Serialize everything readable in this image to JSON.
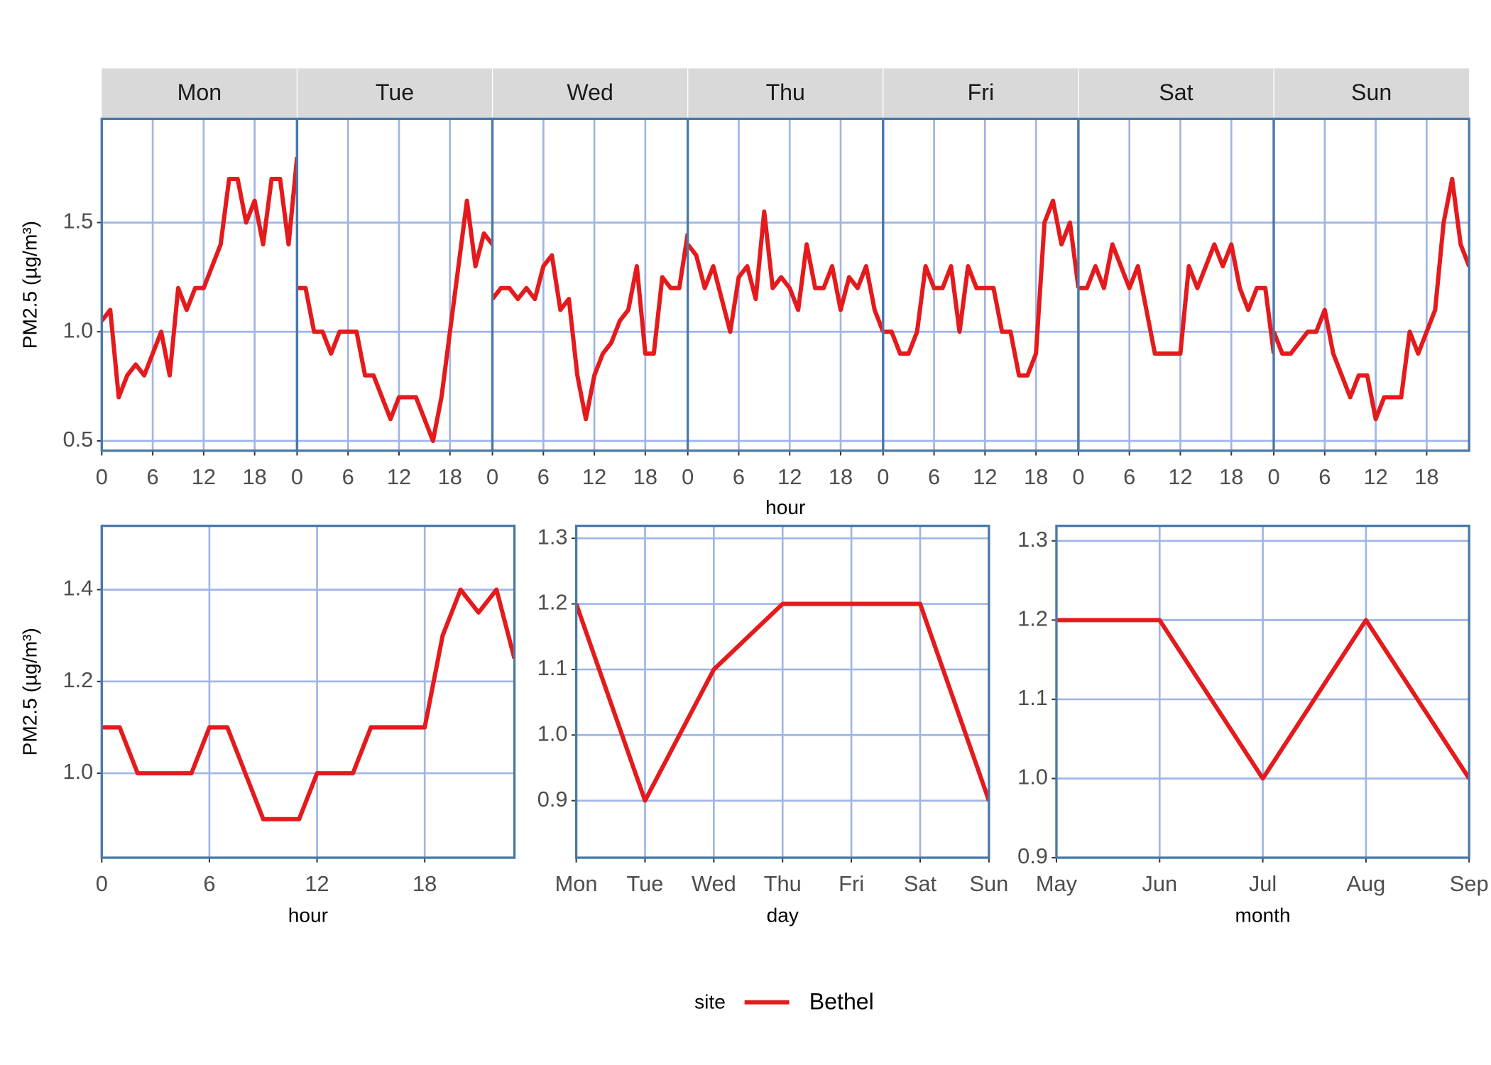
{
  "chart_data": [
    {
      "type": "line",
      "color": "#e41a1c",
      "y_label": "PM2.5 (µg/m³)",
      "x_label": "hour",
      "grid": true,
      "x": [
        0,
        1,
        2,
        3,
        4,
        5,
        6,
        7,
        8,
        9,
        10,
        11,
        12,
        13,
        14,
        15,
        16,
        17,
        18,
        19,
        20,
        21,
        22,
        23
      ],
      "xlim": [
        0,
        23
      ],
      "xticks": [
        0,
        6,
        12,
        18
      ],
      "ylim": [
        0.455,
        1.975
      ],
      "yticks": [
        0.5,
        {
          "value": 1,
          "label": "1.0"
        },
        1.5
      ],
      "facets": [
        {
          "label": "Mon",
          "values": [
            1.05,
            1.1,
            0.7,
            0.8,
            0.85,
            0.8,
            0.9,
            1.0,
            0.8,
            1.2,
            1.1,
            1.2,
            1.2,
            1.3,
            1.4,
            1.7,
            1.7,
            1.5,
            1.6,
            1.4,
            1.7,
            1.7,
            1.4,
            1.8
          ]
        },
        {
          "label": "Tue",
          "values": [
            1.2,
            1.2,
            1.0,
            1.0,
            0.9,
            1.0,
            1.0,
            1.0,
            0.8,
            0.8,
            0.7,
            0.6,
            0.7,
            0.7,
            0.7,
            0.6,
            0.5,
            0.7,
            1.0,
            1.3,
            1.6,
            1.3,
            1.45,
            1.4
          ]
        },
        {
          "label": "Wed",
          "values": [
            1.15,
            1.2,
            1.2,
            1.15,
            1.2,
            1.15,
            1.3,
            1.35,
            1.1,
            1.15,
            0.8,
            0.6,
            0.8,
            0.9,
            0.95,
            1.05,
            1.1,
            1.3,
            0.9,
            0.9,
            1.25,
            1.2,
            1.2,
            1.45
          ]
        },
        {
          "label": "Thu",
          "values": [
            1.4,
            1.35,
            1.2,
            1.3,
            1.15,
            1.0,
            1.25,
            1.3,
            1.15,
            1.55,
            1.2,
            1.25,
            1.2,
            1.1,
            1.4,
            1.2,
            1.2,
            1.3,
            1.1,
            1.25,
            1.2,
            1.3,
            1.1,
            1.0
          ]
        },
        {
          "label": "Fri",
          "values": [
            1.0,
            1.0,
            0.9,
            0.9,
            1.0,
            1.3,
            1.2,
            1.2,
            1.3,
            1.0,
            1.3,
            1.2,
            1.2,
            1.2,
            1.0,
            1.0,
            0.8,
            0.8,
            0.9,
            1.5,
            1.6,
            1.4,
            1.5,
            1.2
          ]
        },
        {
          "label": "Sat",
          "values": [
            1.2,
            1.2,
            1.3,
            1.2,
            1.4,
            1.3,
            1.2,
            1.3,
            1.1,
            0.9,
            0.9,
            0.9,
            0.9,
            1.3,
            1.2,
            1.3,
            1.4,
            1.3,
            1.4,
            1.2,
            1.1,
            1.2,
            1.2,
            0.9
          ]
        },
        {
          "label": "Sun",
          "values": [
            1.0,
            0.9,
            0.9,
            0.95,
            1.0,
            1.0,
            1.1,
            0.9,
            0.8,
            0.7,
            0.8,
            0.8,
            0.6,
            0.7,
            0.7,
            0.7,
            1.0,
            0.9,
            1.0,
            1.1,
            1.5,
            1.7,
            1.4,
            1.3
          ]
        }
      ]
    },
    {
      "type": "line",
      "y_label": "PM2.5 (µg/m³)",
      "x_label": "hour",
      "grid": true,
      "legend_title": "site",
      "x": [
        0,
        1,
        2,
        3,
        4,
        5,
        6,
        7,
        8,
        9,
        10,
        11,
        12,
        13,
        14,
        15,
        16,
        17,
        18,
        19,
        20,
        21,
        22,
        23
      ],
      "xlim": [
        0,
        23
      ],
      "xticks": [
        0,
        6,
        12,
        18
      ],
      "ylim": [
        0.816,
        1.539
      ],
      "yticks": [
        {
          "value": 1,
          "label": "1.0"
        },
        1.2,
        1.4
      ],
      "series": [
        {
          "name": "Bethel",
          "color": "#e41a1c",
          "values": [
            1.1,
            1.1,
            1.0,
            1.0,
            1.0,
            1.0,
            1.1,
            1.1,
            1.0,
            0.9,
            0.9,
            0.9,
            1.0,
            1.0,
            1.0,
            1.1,
            1.1,
            1.1,
            1.1,
            1.3,
            1.4,
            1.35,
            1.4,
            1.25
          ]
        }
      ]
    },
    {
      "type": "line",
      "x_label": "day",
      "grid": true,
      "color": "#e41a1c",
      "categories": [
        "Mon",
        "Tue",
        "Wed",
        "Thu",
        "Fri",
        "Sat",
        "Sun"
      ],
      "values": [
        1.2,
        0.9,
        1.1,
        1.2,
        1.2,
        1.2,
        0.9
      ],
      "ylim": [
        0.813,
        1.319
      ],
      "yticks": [
        0.9,
        {
          "value": 1,
          "label": "1.0"
        },
        1.1,
        1.2,
        1.3
      ]
    },
    {
      "type": "line",
      "x_label": "month",
      "grid": true,
      "color": "#e41a1c",
      "categories": [
        "May",
        "Jun",
        "Jul",
        "Aug",
        "Sep"
      ],
      "values": [
        1.2,
        1.2,
        1.0,
        1.2,
        1.0
      ],
      "ylim": [
        0.9,
        1.319
      ],
      "yticks": [
        0.9,
        {
          "value": 1,
          "label": "1.0"
        },
        1.1,
        1.2,
        1.3
      ]
    }
  ]
}
